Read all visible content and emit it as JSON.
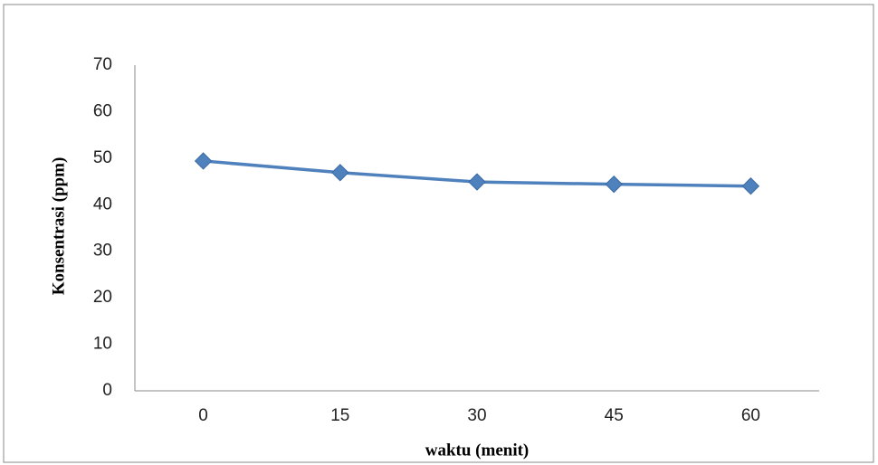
{
  "chart_data": {
    "type": "line",
    "x_label": "waktu (menit)",
    "y_label": "Konsentrasi (ppm)",
    "categories": [
      "0",
      "15",
      "30",
      "45",
      "60"
    ],
    "values": [
      49.4,
      46.9,
      44.9,
      44.4,
      44.0
    ],
    "color": "#4f81bd",
    "ylim": [
      0,
      70
    ],
    "yticks": [
      0,
      10,
      20,
      30,
      40,
      50,
      60,
      70
    ],
    "grid": false
  }
}
